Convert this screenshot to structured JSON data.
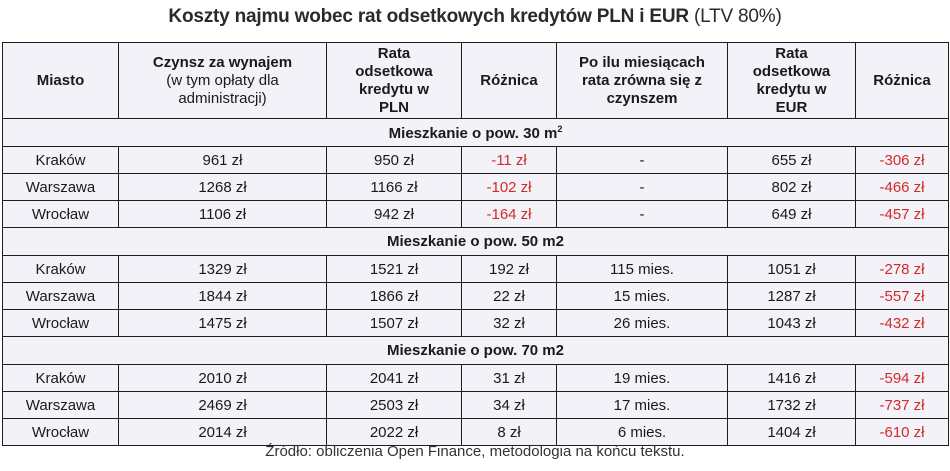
{
  "title": {
    "bold": "Koszty najmu wobec rat odsetkowych kredytów PLN i EUR",
    "suffix": " (LTV 80%)"
  },
  "table": {
    "headers": {
      "city": "Miasto",
      "rent_main": "Czynsz za wynajem",
      "rent_sub": "(w tym opłaty dla administracji)",
      "rate_pln": "Rata odsetkowa kredytu w PLN",
      "diff_pln": "Różnica",
      "months": "Po ilu miesiącach rata zrówna się z czynszem",
      "rate_eur": "Rata odsetkowa kredytu w EUR",
      "diff_eur": "Różnica"
    },
    "sections": [
      {
        "label": "Mieszkanie o pow. 30 m",
        "label_sup": "2",
        "rows": [
          {
            "city": "Kraków",
            "rent": "961 zł",
            "rate_pln": "950 zł",
            "diff_pln": "-11 zł",
            "months": "-",
            "rate_eur": "655 zł",
            "diff_eur": "-306 zł"
          },
          {
            "city": "Warszawa",
            "rent": "1268 zł",
            "rate_pln": "1166 zł",
            "diff_pln": "-102 zł",
            "months": "-",
            "rate_eur": "802 zł",
            "diff_eur": "-466 zł"
          },
          {
            "city": "Wrocław",
            "rent": "1106 zł",
            "rate_pln": "942 zł",
            "diff_pln": "-164 zł",
            "months": "-",
            "rate_eur": "649 zł",
            "diff_eur": "-457 zł"
          }
        ]
      },
      {
        "label": "Mieszkanie o pow. 50 m2",
        "rows": [
          {
            "city": "Kraków",
            "rent": "1329 zł",
            "rate_pln": "1521 zł",
            "diff_pln": "192 zł",
            "months": "115 mies.",
            "rate_eur": "1051 zł",
            "diff_eur": "-278 zł"
          },
          {
            "city": "Warszawa",
            "rent": "1844 zł",
            "rate_pln": "1866 zł",
            "diff_pln": "22 zł",
            "months": "15 mies.",
            "rate_eur": "1287 zł",
            "diff_eur": "-557 zł"
          },
          {
            "city": "Wrocław",
            "rent": "1475 zł",
            "rate_pln": "1507 zł",
            "diff_pln": "32 zł",
            "months": "26 mies.",
            "rate_eur": "1043 zł",
            "diff_eur": "-432 zł"
          }
        ]
      },
      {
        "label": "Mieszkanie o pow. 70 m2",
        "rows": [
          {
            "city": "Kraków",
            "rent": "2010 zł",
            "rate_pln": "2041 zł",
            "diff_pln": "31 zł",
            "months": "19 mies.",
            "rate_eur": "1416 zł",
            "diff_eur": "-594 zł"
          },
          {
            "city": "Warszawa",
            "rent": "2469 zł",
            "rate_pln": "2503 zł",
            "diff_pln": "34 zł",
            "months": "17 mies.",
            "rate_eur": "1732 zł",
            "diff_eur": "-737 zł"
          },
          {
            "city": "Wrocław",
            "rent": "2014 zł",
            "rate_pln": "2022 zł",
            "diff_pln": "8 zł",
            "months": "6 mies.",
            "rate_eur": "1404 zł",
            "diff_eur": "-610 zł"
          }
        ]
      }
    ]
  },
  "source": "Źródło: obliczenia Open Finance, metodologia na końcu tekstu.",
  "colors": {
    "table_bg": "#f3f2f8",
    "negative": "#d42a2a",
    "border": "#1e1e1e"
  }
}
